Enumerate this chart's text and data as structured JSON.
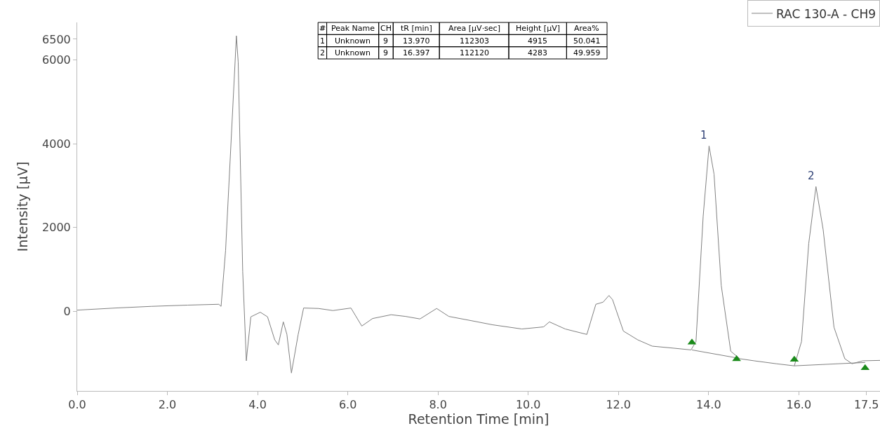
{
  "chart_data": {
    "type": "line",
    "xlabel": "Retention Time [min]",
    "ylabel": "Intensity [µV]",
    "xlim": [
      0,
      17.8
    ],
    "ylim": [
      -1900,
      6900
    ],
    "xticks": [
      {
        "value": 0,
        "label": "0.0"
      },
      {
        "value": 2,
        "label": "2.0"
      },
      {
        "value": 4,
        "label": "4.0"
      },
      {
        "value": 6,
        "label": "6.0"
      },
      {
        "value": 8,
        "label": "8.0"
      },
      {
        "value": 10,
        "label": "10.0"
      },
      {
        "value": 12,
        "label": "12.0"
      },
      {
        "value": 14,
        "label": "14.0"
      },
      {
        "value": 16,
        "label": "16.0"
      },
      17.5
    ],
    "yticks": [
      0,
      2000,
      4000,
      6000,
      6500
    ],
    "legend": "top right",
    "series": [
      {
        "name": "RAC 130-A - CH9",
        "color": "#808080",
        "x": [
          0,
          0.84,
          1.64,
          2.45,
          3.14,
          3.19,
          3.29,
          3.53,
          3.57,
          3.67,
          3.75,
          3.85,
          4.06,
          4.22,
          4.38,
          4.46,
          4.57,
          4.65,
          4.75,
          4.9,
          5.02,
          5.35,
          5.67,
          6.07,
          6.31,
          6.55,
          6.96,
          7.28,
          7.6,
          7.97,
          8.24,
          8.73,
          9.21,
          9.86,
          10.34,
          10.47,
          10.82,
          11.3,
          11.5,
          11.66,
          11.79,
          11.87,
          12.11,
          12.43,
          12.75,
          13.24,
          13.61,
          13.72,
          13.88,
          14.01,
          14.12,
          14.28,
          14.49,
          14.69,
          15.01,
          15.5,
          15.9,
          16.06,
          16.22,
          16.38,
          16.54,
          16.78,
          17.02,
          17.18,
          17.42,
          17.8
        ],
        "values": [
          30,
          80,
          120,
          150,
          170,
          120,
          1450,
          6580,
          5950,
          950,
          -1180,
          -130,
          -20,
          -130,
          -680,
          -800,
          -250,
          -550,
          -1470,
          -550,
          80,
          70,
          20,
          80,
          -350,
          -170,
          -80,
          -120,
          -180,
          70,
          -120,
          -220,
          -320,
          -420,
          -370,
          -250,
          -420,
          -550,
          170,
          220,
          380,
          280,
          -470,
          -680,
          -830,
          -880,
          -920,
          -720,
          2280,
          3950,
          3280,
          620,
          -950,
          -1130,
          -1180,
          -1250,
          -1300,
          -720,
          1620,
          2980,
          1950,
          -380,
          -1130,
          -1250,
          -1180,
          -1170
        ]
      },
      {
        "type": "line",
        "color": "#808080",
        "x": [
          13.63,
          14.62
        ],
        "values": [
          -920,
          -1110
        ]
      },
      {
        "type": "line",
        "color": "#808080",
        "x": [
          15.9,
          17.47
        ],
        "values": [
          -1300,
          -1220
        ]
      },
      {
        "type": "scatter",
        "marker": "triangle",
        "color": "#1a8a1a",
        "x": [
          13.63,
          14.62,
          15.9,
          17.47
        ],
        "values": [
          -740,
          -1140,
          -1150,
          -1350
        ]
      }
    ],
    "annotations": [
      {
        "text": "1",
        "x": 14.01,
        "y": 3950
      },
      {
        "text": "2",
        "x": 16.38,
        "y": 2980
      },
      "#",
      "Peak Name",
      "CH",
      "tR [min]",
      "Area [µV·sec]",
      "Height [µV]",
      "Area%",
      "1",
      "Unknown",
      "9",
      "13.970",
      "112303",
      "4915",
      "50.041",
      "2",
      "Unknown",
      "9",
      "16.397",
      "112120",
      "4283",
      "49.959"
    ]
  }
}
